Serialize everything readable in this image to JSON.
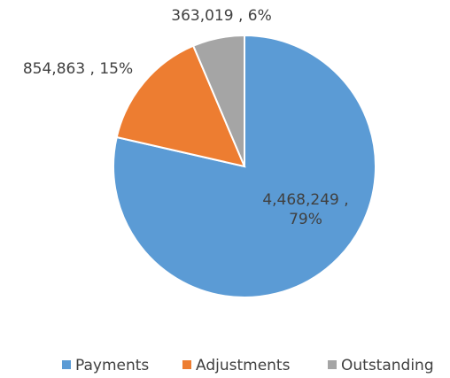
{
  "chart_data": {
    "type": "pie",
    "categories": [
      "Payments",
      "Adjustments",
      "Outstanding"
    ],
    "values": [
      4468249,
      854863,
      363019
    ],
    "value_labels": [
      "4,468,249 , 79%",
      "854,863 , 15%",
      "363,019 , 6%"
    ],
    "colors": [
      "#5b9bd5",
      "#ed7d31",
      "#a5a5a5"
    ],
    "legend": "bottom"
  }
}
